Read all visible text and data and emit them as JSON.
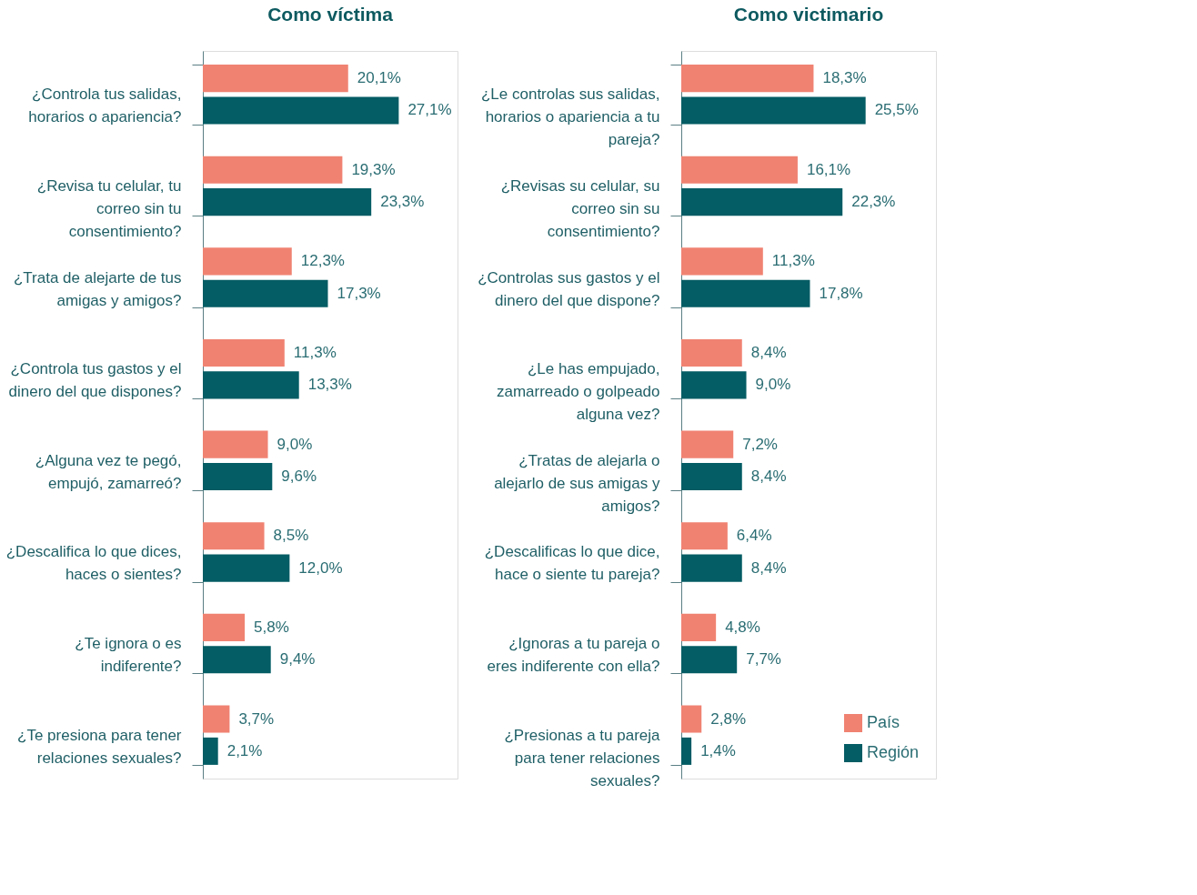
{
  "chart_data": [
    {
      "type": "bar",
      "orientation": "horizontal",
      "title": "Como víctima",
      "categories": [
        "¿Controla tus salidas, horarios o apariencia?",
        "¿Revisa tu celular, tu correo sin tu consentimiento?",
        "¿Trata de alejarte de tus amigas y amigos?",
        "¿Controla tus gastos y el dinero del que dispones?",
        "¿Alguna vez te pegó, empujó, zamarreó?",
        "¿Descalifica lo que dices, haces o sientes?",
        "¿Te ignora o es indiferente?",
        "¿Te presiona para tener relaciones sexuales?"
      ],
      "series": [
        {
          "color": "#f08272",
          "values": [
            20.1,
            19.3,
            12.3,
            11.3,
            9.0,
            8.5,
            5.8,
            3.7
          ],
          "value_labels": [
            "20,1%",
            "19,3%",
            "12,3%",
            "11,3%",
            "9,0%",
            "8,5%",
            "5,8%",
            "3,7%"
          ]
        },
        {
          "color": "#045c64",
          "values": [
            27.1,
            23.3,
            17.3,
            13.3,
            9.6,
            12.0,
            9.4,
            2.1
          ],
          "value_labels": [
            "27,1%",
            "23,3%",
            "17,3%",
            "13,3%",
            "9,6%",
            "12,0%",
            "9,4%",
            "2,1%"
          ]
        }
      ]
    },
    {
      "type": "bar",
      "orientation": "horizontal",
      "title": "Como victimario",
      "legend": "bottom right",
      "categories": [
        "¿Le controlas sus salidas, horarios o apariencia a tu pareja?",
        "¿Revisas su celular, su correo sin su consentimiento?",
        "¿Controlas sus gastos y el dinero del que dispone?",
        "¿Le has empujado, zamarreado o golpeado alguna vez?",
        "¿Tratas de alejarla o alejarlo de sus amigas y amigos?",
        "¿Descalificas lo que dice, hace o siente tu pareja?",
        "¿Ignoras a tu pareja o eres indiferente con ella?",
        "¿Presionas a tu pareja para tener relaciones sexuales?"
      ],
      "series": [
        {
          "name": "País",
          "color": "#f08272",
          "values": [
            18.3,
            16.1,
            11.3,
            8.4,
            7.2,
            6.4,
            4.8,
            2.8
          ],
          "value_labels": [
            "18,3%",
            "16,1%",
            "11,3%",
            "8,4%",
            "7,2%",
            "6,4%",
            "4,8%",
            "2,8%"
          ]
        },
        {
          "name": "Región",
          "color": "#045c64",
          "values": [
            25.5,
            22.3,
            17.8,
            9.0,
            8.4,
            8.4,
            7.7,
            1.4
          ],
          "value_labels": [
            "25,5%",
            "22,3%",
            "17,8%",
            "9,0%",
            "8,4%",
            "8,4%",
            "7,7%",
            "1,4%"
          ]
        }
      ]
    }
  ]
}
